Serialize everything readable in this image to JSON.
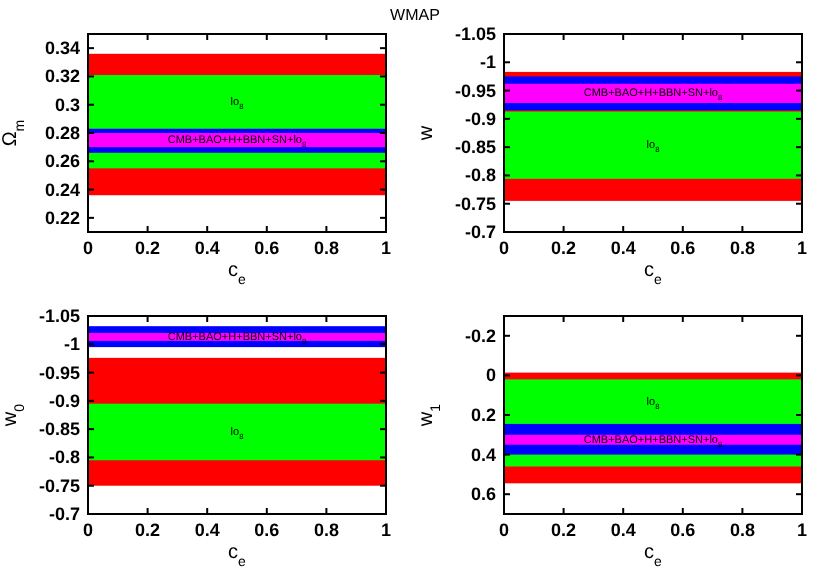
{
  "chart_data": [
    {
      "type": "line",
      "title": "WMAP",
      "xlabel": "c$_{e}$",
      "ylabel": "Ω$_{m}$",
      "xlim": [
        0,
        1
      ],
      "xticks": [
        0,
        0.2,
        0.4,
        0.6,
        0.8,
        1
      ],
      "ylim": [
        0.21,
        0.35
      ],
      "yticks": [
        0.22,
        0.24,
        0.26,
        0.28,
        0.3,
        0.32,
        0.34
      ],
      "grid": false,
      "bands": [
        {
          "axis": "y",
          "from": 0.236,
          "to": 0.336,
          "color": "#ff0000"
        },
        {
          "axis": "y",
          "from": 0.255,
          "to": 0.321,
          "color": "#00ff00",
          "label": "lo$_{8}$"
        },
        {
          "axis": "y",
          "from": 0.266,
          "to": 0.283,
          "color": "#0000ff"
        },
        {
          "axis": "y",
          "from": 0.27,
          "to": 0.28,
          "color": "#ff00ff",
          "label": "CMB+BAO+H+BBN+SN+lo$_{8}$"
        }
      ]
    },
    {
      "type": "line",
      "xlabel": "c$_{e}$",
      "ylabel": "w",
      "xlim": [
        0,
        1
      ],
      "xticks": [
        0,
        0.2,
        0.4,
        0.6,
        0.8,
        1
      ],
      "ylim": [
        -0.7,
        -1.05
      ],
      "yticks": [
        -1.05,
        -1,
        -0.95,
        -0.9,
        -0.85,
        -0.8,
        -0.75,
        -0.7
      ],
      "grid": false,
      "bands": [
        {
          "axis": "y",
          "from": -0.755,
          "to": -0.983,
          "color": "#ff0000"
        },
        {
          "axis": "y",
          "from": -0.794,
          "to": -0.913,
          "color": "#00ff00",
          "label": "lo$_{8}$"
        },
        {
          "axis": "y",
          "from": -0.915,
          "to": -0.975,
          "color": "#0000ff"
        },
        {
          "axis": "y",
          "from": -0.928,
          "to": -0.962,
          "color": "#ff00ff",
          "label": "CMB+BAO+H+BBN+SN+lo$_{8}$"
        }
      ]
    },
    {
      "type": "line",
      "xlabel": "c$_{e}$",
      "ylabel": "w$_{0}$",
      "xlim": [
        0,
        1
      ],
      "xticks": [
        0,
        0.2,
        0.4,
        0.6,
        0.8,
        1
      ],
      "ylim": [
        -0.7,
        -1.05
      ],
      "yticks": [
        -1.05,
        -1,
        -0.95,
        -0.9,
        -0.85,
        -0.8,
        -0.75,
        -0.7
      ],
      "grid": false,
      "bands": [
        {
          "axis": "y",
          "from": -0.75,
          "to": -0.976,
          "color": "#ff0000"
        },
        {
          "axis": "y",
          "from": -0.795,
          "to": -0.895,
          "color": "#00ff00",
          "label": "lo$_{8}$"
        },
        {
          "axis": "y",
          "from": -0.995,
          "to": -1.032,
          "color": "#0000ff"
        },
        {
          "axis": "y",
          "from": -1.006,
          "to": -1.02,
          "color": "#ff00ff",
          "label": "CMB+BAO+H+BBN+SN+lo$_{8}$"
        }
      ]
    },
    {
      "type": "line",
      "xlabel": "c$_{e}$",
      "ylabel": "w$_{1}$",
      "xlim": [
        0,
        1
      ],
      "xticks": [
        0,
        0.2,
        0.4,
        0.6,
        0.8,
        1
      ],
      "ylim": [
        0.7,
        -0.3
      ],
      "yticks": [
        -0.2,
        0,
        0.2,
        0.4,
        0.6
      ],
      "grid": false,
      "bands": [
        {
          "axis": "y",
          "from": -0.014,
          "to": 0.545,
          "color": "#ff0000"
        },
        {
          "axis": "y",
          "from": 0.02,
          "to": 0.46,
          "color": "#00ff00",
          "label": "lo$_{8}$"
        },
        {
          "axis": "y",
          "from": 0.245,
          "to": 0.4,
          "color": "#0000ff"
        },
        {
          "axis": "y",
          "from": 0.3,
          "to": 0.35,
          "color": "#ff00ff",
          "label": "CMB+BAO+H+BBN+SN+lo$_{8}$"
        }
      ]
    }
  ]
}
